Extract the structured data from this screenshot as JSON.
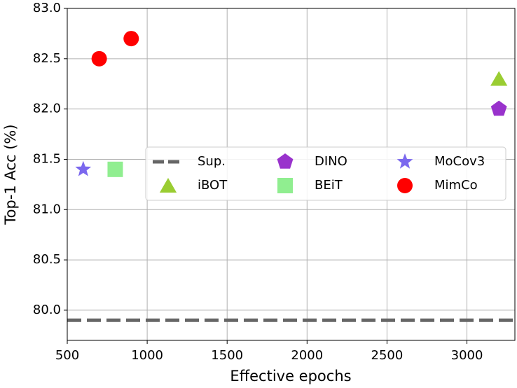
{
  "chart_data": {
    "type": "scatter",
    "xlabel": "Effective epochs",
    "ylabel": "Top-1 Acc (%)",
    "xlim": [
      500,
      3300
    ],
    "xticks": [
      500,
      1000,
      1500,
      2000,
      2500,
      3000
    ],
    "ylim": [
      79.7,
      83.0
    ],
    "yticks": [
      {
        "value": 80,
        "label": "80.0"
      },
      80.5,
      {
        "value": 81,
        "label": "81.0"
      },
      81.5,
      {
        "value": 82,
        "label": "82.0"
      },
      82.5,
      {
        "value": 83,
        "label": "83.0"
      }
    ],
    "grid": true,
    "legend": "center-right",
    "series": [
      {
        "name": "Sup.",
        "color": "#666666",
        "marker": "dashed-line",
        "values": [
          79.9
        ]
      },
      {
        "name": "iBOT",
        "color": "#9acd32",
        "marker": "triangle",
        "x": [
          3200
        ],
        "values": [
          82.3
        ]
      },
      {
        "name": "DINO",
        "color": "#9932cc",
        "marker": "pentagon",
        "x": [
          3200
        ],
        "values": [
          82.0
        ]
      },
      {
        "name": "BEiT",
        "color": "#90ee90",
        "marker": "square",
        "x": [
          800
        ],
        "values": [
          81.4
        ]
      },
      {
        "name": "MoCov3",
        "color": "#7b68ee",
        "marker": "star",
        "x": [
          600
        ],
        "values": [
          81.4
        ]
      },
      {
        "name": "MimCo",
        "color": "#ff0000",
        "marker": "circle",
        "x": [
          700,
          900
        ],
        "values": [
          82.5,
          82.7
        ]
      }
    ]
  }
}
